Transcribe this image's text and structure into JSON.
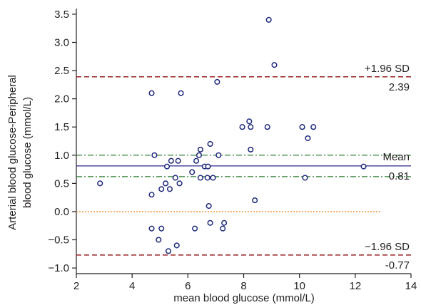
{
  "chart_data": {
    "type": "scatter",
    "title": "",
    "xlabel": "mean blood glucose (mmol/L)",
    "ylabel_line1": "Arterial blood glucose-Peripheral",
    "ylabel_line2": "blood glucose (mmol/L)",
    "xlim": [
      2,
      14
    ],
    "ylim": [
      -1.1,
      3.6
    ],
    "xticks": [
      2,
      4,
      6,
      8,
      10,
      12,
      14
    ],
    "yticks": [
      -1.0,
      -0.5,
      0.0,
      0.5,
      1.0,
      1.5,
      2.0,
      2.5,
      3.0,
      3.5
    ],
    "xtick_labels": [
      "2",
      "4",
      "6",
      "8",
      "10",
      "12",
      "14"
    ],
    "ytick_labels": [
      "−1.0",
      "−0.5",
      "0.0",
      "0.5",
      "1.0",
      "1.5",
      "2.0",
      "2.5",
      "3.0",
      "3.5"
    ],
    "grid": false,
    "lines": {
      "upper_loa": {
        "value": 2.39,
        "label": "+1.96 SD",
        "value_label": "2.39",
        "color": "#9b2226",
        "style": "dashed"
      },
      "lower_loa": {
        "value": -0.77,
        "label": "−1.96 SD",
        "value_label": "−0.77",
        "color": "#9b2226",
        "style": "dashed"
      },
      "mean": {
        "value": 0.81,
        "label": "Mean",
        "value_label": "0.81",
        "color": "#3a3a9a",
        "style": "solid"
      },
      "mean_ci_upper": {
        "value": 1.0,
        "color": "#2e7d32",
        "style": "dashdot"
      },
      "mean_ci_lower": {
        "value": 0.62,
        "color": "#2e7d32",
        "style": "dashdot"
      },
      "zero": {
        "value": 0.0,
        "color": "#f28c28",
        "style": "dotted"
      }
    },
    "point_color": "#1f2a7a",
    "points": [
      {
        "x": 2.85,
        "y": 0.5
      },
      {
        "x": 4.7,
        "y": 2.1
      },
      {
        "x": 4.7,
        "y": 0.3
      },
      {
        "x": 4.7,
        "y": -0.3
      },
      {
        "x": 4.8,
        "y": 1.0
      },
      {
        "x": 4.95,
        "y": -0.5
      },
      {
        "x": 5.05,
        "y": 0.4
      },
      {
        "x": 5.05,
        "y": -0.3
      },
      {
        "x": 5.2,
        "y": 0.5
      },
      {
        "x": 5.25,
        "y": 0.8
      },
      {
        "x": 5.3,
        "y": -0.7
      },
      {
        "x": 5.35,
        "y": 0.4
      },
      {
        "x": 5.4,
        "y": 0.9
      },
      {
        "x": 5.55,
        "y": 0.6
      },
      {
        "x": 5.6,
        "y": -0.6
      },
      {
        "x": 5.65,
        "y": 0.9
      },
      {
        "x": 5.7,
        "y": 0.5
      },
      {
        "x": 5.75,
        "y": 2.1
      },
      {
        "x": 6.15,
        "y": 0.7
      },
      {
        "x": 6.25,
        "y": -0.3
      },
      {
        "x": 6.3,
        "y": 0.9
      },
      {
        "x": 6.4,
        "y": 1.0
      },
      {
        "x": 6.45,
        "y": 0.6
      },
      {
        "x": 6.45,
        "y": 1.1
      },
      {
        "x": 6.6,
        "y": 0.8
      },
      {
        "x": 6.7,
        "y": 0.6
      },
      {
        "x": 6.72,
        "y": 0.8
      },
      {
        "x": 6.75,
        "y": 0.1
      },
      {
        "x": 6.8,
        "y": 1.2
      },
      {
        "x": 6.8,
        "y": -0.2
      },
      {
        "x": 6.9,
        "y": 0.6
      },
      {
        "x": 7.05,
        "y": 2.3
      },
      {
        "x": 7.1,
        "y": 1.0
      },
      {
        "x": 7.25,
        "y": -0.3
      },
      {
        "x": 7.3,
        "y": -0.2
      },
      {
        "x": 7.95,
        "y": 1.5
      },
      {
        "x": 8.2,
        "y": 1.6
      },
      {
        "x": 8.25,
        "y": 1.5
      },
      {
        "x": 8.25,
        "y": 1.1
      },
      {
        "x": 8.4,
        "y": 0.2
      },
      {
        "x": 8.85,
        "y": 1.5
      },
      {
        "x": 8.9,
        "y": 3.4
      },
      {
        "x": 9.1,
        "y": 2.6
      },
      {
        "x": 10.1,
        "y": 1.5
      },
      {
        "x": 10.2,
        "y": 0.6
      },
      {
        "x": 10.3,
        "y": 1.3
      },
      {
        "x": 10.5,
        "y": 1.5
      },
      {
        "x": 12.3,
        "y": 0.8
      }
    ]
  }
}
